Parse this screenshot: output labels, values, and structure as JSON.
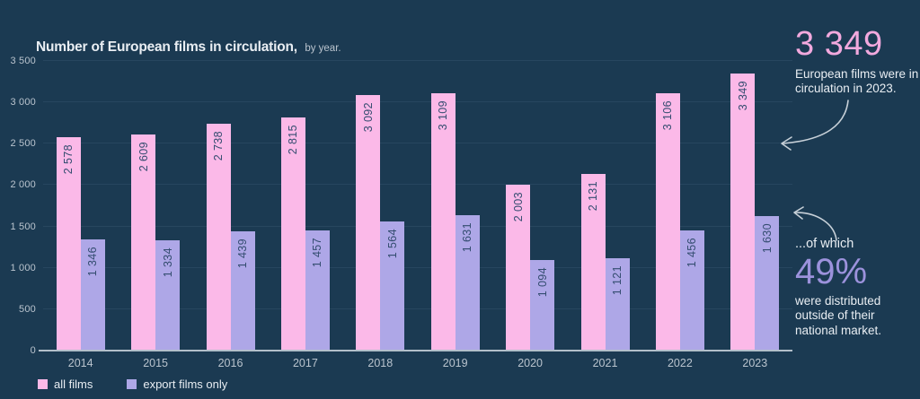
{
  "header": {
    "title": "Number of European films in circulation,",
    "subtitle": "by year."
  },
  "chart_data": {
    "type": "bar",
    "grouped": true,
    "title": "Number of European films in circulation, by year.",
    "categories": [
      "2014",
      "2015",
      "2016",
      "2017",
      "2018",
      "2019",
      "2020",
      "2021",
      "2022",
      "2023"
    ],
    "series": [
      {
        "id": "all-films",
        "name": "all films",
        "color": "#fbb9e8",
        "values": [
          2578,
          2609,
          2738,
          2815,
          3092,
          3109,
          2003,
          2131,
          3106,
          3349
        ]
      },
      {
        "id": "export-films-only",
        "name": "export films only",
        "color": "#aea7e7",
        "values": [
          1346,
          1334,
          1439,
          1457,
          1564,
          1631,
          1094,
          1121,
          1456,
          1630
        ]
      }
    ],
    "xlabel": "",
    "ylabel": "",
    "ylim": [
      0,
      3500
    ],
    "yticks": [
      0,
      500,
      1000,
      1500,
      2000,
      2500,
      3000,
      3500
    ],
    "grid": true,
    "legend_position": "bottom-left",
    "bar_value_labels": "rotated, inside bar top, thousands separated by space"
  },
  "annotations": {
    "top": {
      "number": "3 349",
      "text": "European films were in circulation in 2023."
    },
    "bottom": {
      "lead": "...of which",
      "number": "49%",
      "text": "were distributed outside of their national market."
    }
  },
  "colors": {
    "background": "#1b3a52",
    "all_films_pink": "#fbb9e8",
    "export_films_purple": "#aea7e7",
    "big_number_pink": "#f2a9de",
    "big_number_purple": "#9c92dc",
    "gridline": "#27465f",
    "axis_line": "#b3bfca",
    "bar_value_text": "#344d70",
    "text_primary": "#e9eef3",
    "text_secondary": "#bac4ce",
    "arrow": "#c7d0d8"
  }
}
